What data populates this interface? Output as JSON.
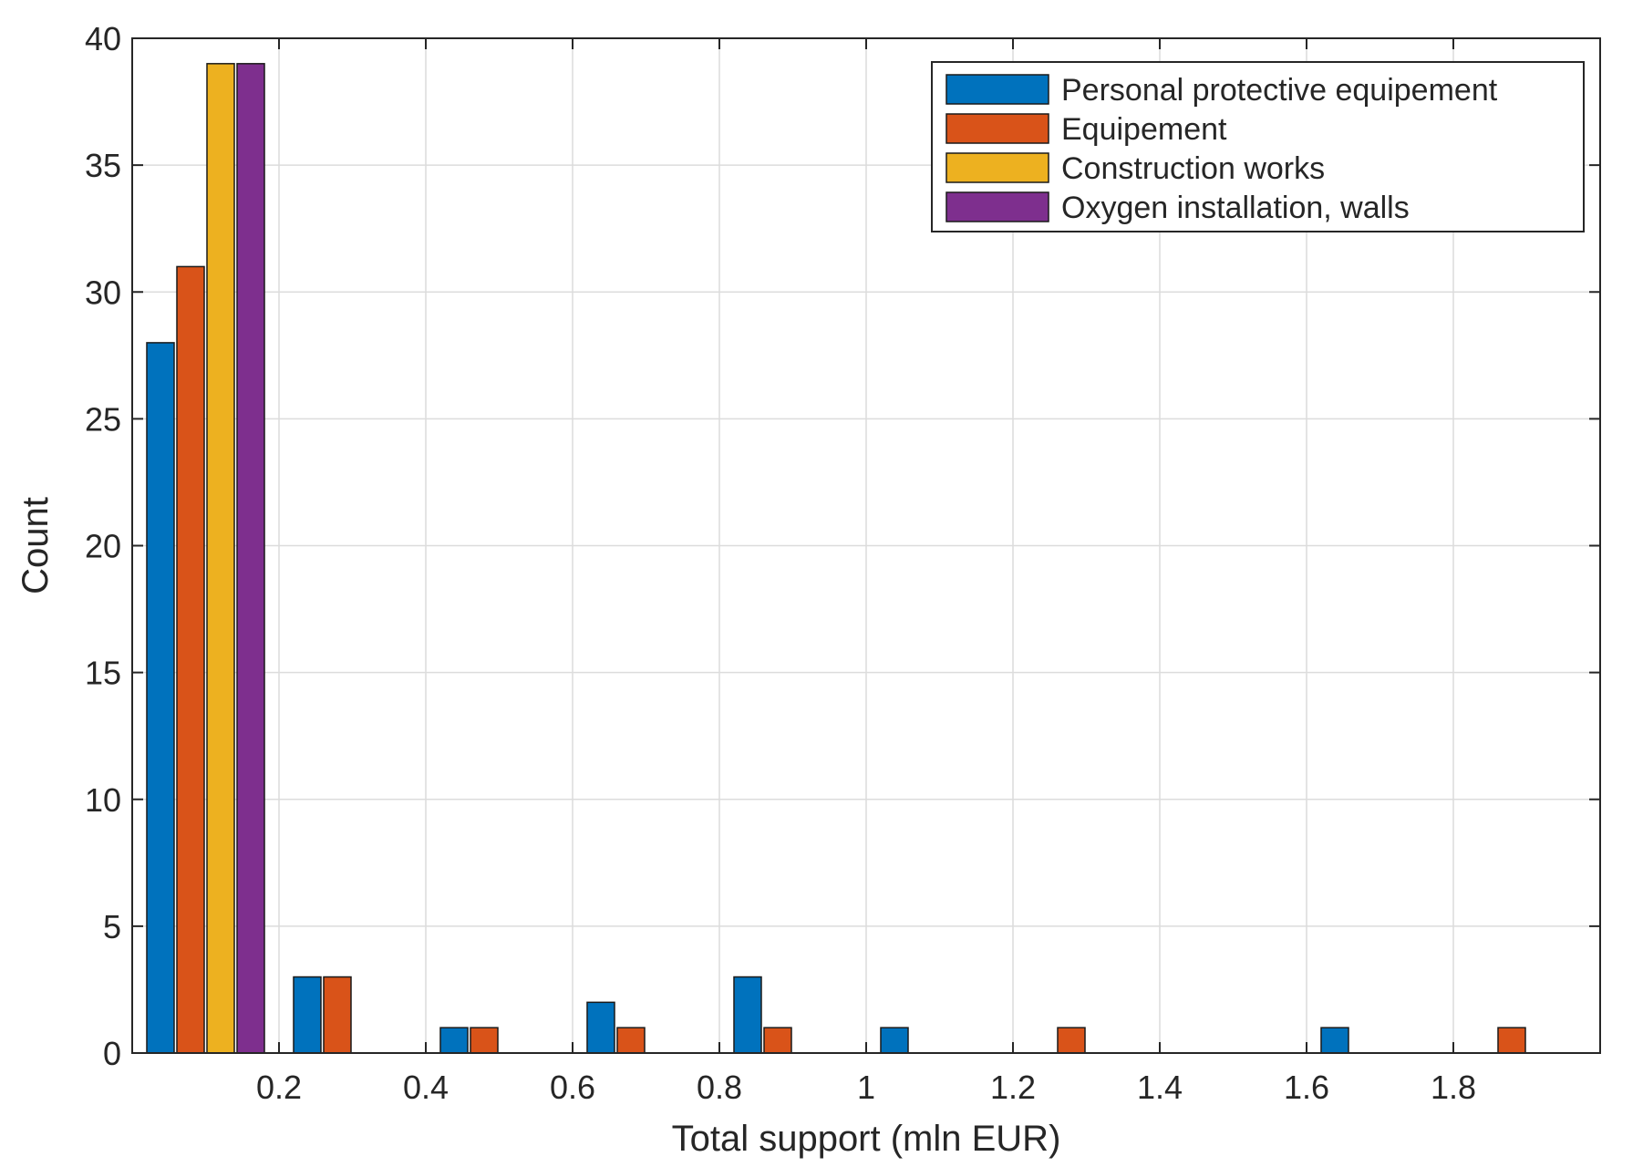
{
  "chart_data": {
    "type": "bar",
    "title": "",
    "xlabel": "Total support (mln EUR)",
    "ylabel": "Count",
    "xlim": [
      0,
      2
    ],
    "ylim": [
      0,
      40
    ],
    "xticks": [
      0.2,
      0.4,
      0.6,
      0.8,
      1,
      1.2,
      1.4,
      1.6,
      1.8
    ],
    "xtick_labels": [
      "0.2",
      "0.4",
      "0.6",
      "0.8",
      "1",
      "1.2",
      "1.4",
      "1.6",
      "1.8"
    ],
    "yticks": [
      0,
      5,
      10,
      15,
      20,
      25,
      30,
      35,
      40
    ],
    "ytick_labels": [
      "0",
      "5",
      "10",
      "15",
      "20",
      "25",
      "30",
      "35",
      "40"
    ],
    "grid": true,
    "legend_position": "top-right",
    "bin_width": 0.2,
    "bin_centers": [
      0.1,
      0.3,
      0.5,
      0.7,
      0.9,
      1.1,
      1.3,
      1.5,
      1.7,
      1.9
    ],
    "series": [
      {
        "name": "Personal protective equipement",
        "color": "#0072BD",
        "values": [
          28,
          3,
          1,
          2,
          3,
          1,
          0,
          0,
          1,
          0
        ]
      },
      {
        "name": "Equipement",
        "color": "#D95319",
        "values": [
          31,
          3,
          1,
          1,
          1,
          0,
          1,
          0,
          0,
          1
        ]
      },
      {
        "name": "Construction works",
        "color": "#EDB120",
        "values": [
          39,
          0,
          0,
          0,
          0,
          0,
          0,
          0,
          0,
          0
        ]
      },
      {
        "name": "Oxygen installation, walls",
        "color": "#7E2F8E",
        "values": [
          39,
          0,
          0,
          0,
          0,
          0,
          0,
          0,
          0,
          0
        ]
      }
    ]
  }
}
